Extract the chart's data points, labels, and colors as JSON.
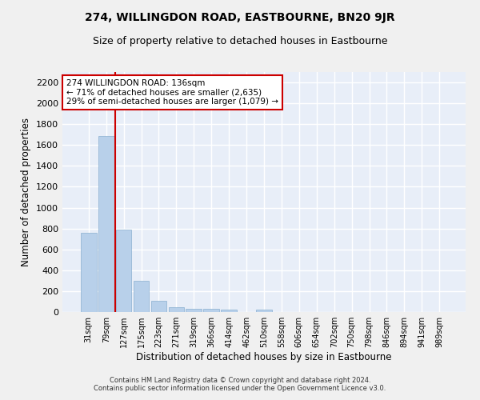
{
  "title": "274, WILLINGDON ROAD, EASTBOURNE, BN20 9JR",
  "subtitle": "Size of property relative to detached houses in Eastbourne",
  "xlabel": "Distribution of detached houses by size in Eastbourne",
  "ylabel": "Number of detached properties",
  "categories": [
    "31sqm",
    "79sqm",
    "127sqm",
    "175sqm",
    "223sqm",
    "271sqm",
    "319sqm",
    "366sqm",
    "414sqm",
    "462sqm",
    "510sqm",
    "558sqm",
    "606sqm",
    "654sqm",
    "702sqm",
    "750sqm",
    "798sqm",
    "846sqm",
    "894sqm",
    "941sqm",
    "989sqm"
  ],
  "values": [
    760,
    1690,
    790,
    300,
    110,
    45,
    32,
    28,
    20,
    0,
    20,
    0,
    0,
    0,
    0,
    0,
    0,
    0,
    0,
    0,
    0
  ],
  "bar_color": "#b8d0ea",
  "bar_edge_color": "#8ab0d0",
  "vline_color": "#cc0000",
  "annotation_text": "274 WILLINGDON ROAD: 136sqm\n← 71% of detached houses are smaller (2,635)\n29% of semi-detached houses are larger (1,079) →",
  "annotation_box_facecolor": "#ffffff",
  "annotation_box_edgecolor": "#cc0000",
  "ylim": [
    0,
    2300
  ],
  "yticks": [
    0,
    200,
    400,
    600,
    800,
    1000,
    1200,
    1400,
    1600,
    1800,
    2000,
    2200
  ],
  "background_color": "#e8eef8",
  "grid_color": "#ffffff",
  "fig_facecolor": "#f0f0f0",
  "footer": "Contains HM Land Registry data © Crown copyright and database right 2024.\nContains public sector information licensed under the Open Government Licence v3.0.",
  "title_fontsize": 10,
  "subtitle_fontsize": 9,
  "xlabel_fontsize": 8.5,
  "ylabel_fontsize": 8.5,
  "annotation_fontsize": 7.5,
  "footer_fontsize": 6
}
